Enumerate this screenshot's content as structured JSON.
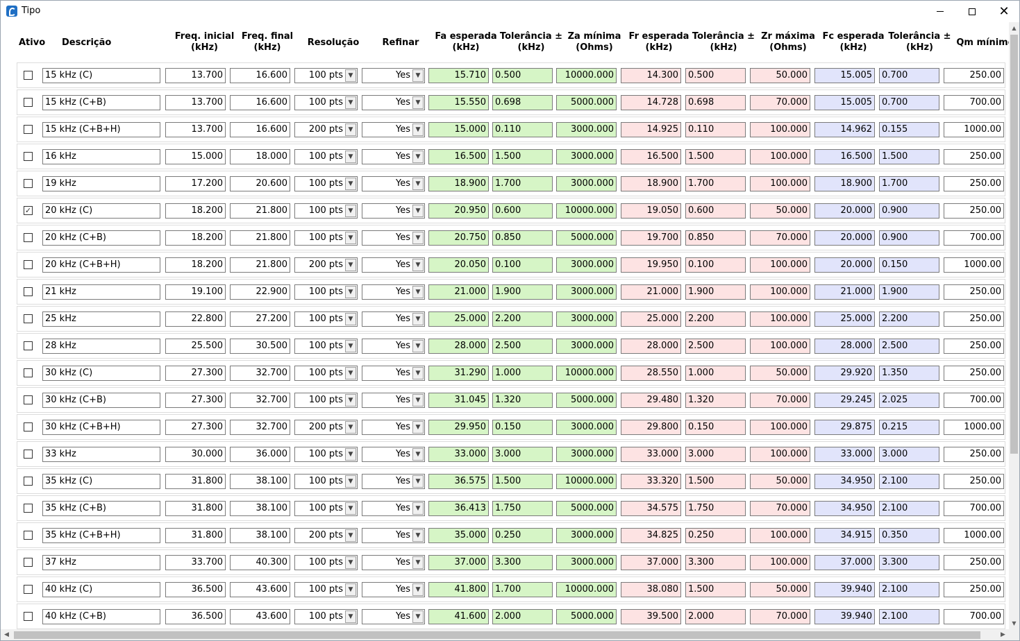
{
  "window": {
    "title": "Tipo"
  },
  "columns": [
    {
      "key": "ativo",
      "line1": "Ativo",
      "line2": ""
    },
    {
      "key": "descricao",
      "line1": "Descrição",
      "line2": ""
    },
    {
      "key": "freq_inicial",
      "line1": "Freq. inicial",
      "line2": "(kHz)"
    },
    {
      "key": "freq_final",
      "line1": "Freq. final",
      "line2": "(kHz)"
    },
    {
      "key": "resolucao",
      "line1": "Resolução",
      "line2": ""
    },
    {
      "key": "refinar",
      "line1": "Refinar",
      "line2": ""
    },
    {
      "key": "fa_esperada",
      "line1": "Fa esperada",
      "line2": "(kHz)"
    },
    {
      "key": "fa_tol",
      "line1": "Tolerância ±",
      "line2": "(kHz)"
    },
    {
      "key": "za_minima",
      "line1": "Za mínima",
      "line2": "(Ohms)"
    },
    {
      "key": "fr_esperada",
      "line1": "Fr esperada",
      "line2": "(kHz)"
    },
    {
      "key": "fr_tol",
      "line1": "Tolerância ±",
      "line2": "(kHz)"
    },
    {
      "key": "zr_maxima",
      "line1": "Zr máxima",
      "line2": "(Ohms)"
    },
    {
      "key": "fc_esperada",
      "line1": "Fc esperada",
      "line2": "(kHz)"
    },
    {
      "key": "fc_tol",
      "line1": "Tolerância ±",
      "line2": "(kHz)"
    },
    {
      "key": "qm_minimo",
      "line1": "Qm mínimo",
      "line2": ""
    }
  ],
  "colors": {
    "green": "#d6f5c6",
    "pink": "#fde3e3",
    "blue": "#e1e4fb"
  },
  "rows": [
    {
      "ativo": false,
      "descricao": "15 kHz (C)",
      "freq_inicial": "13.700",
      "freq_final": "16.600",
      "resolucao": "100 pts",
      "refinar": "Yes",
      "fa_esperada": "15.710",
      "fa_tol": "0.500",
      "za_minima": "10000.000",
      "fr_esperada": "14.300",
      "fr_tol": "0.500",
      "zr_maxima": "50.000",
      "fc_esperada": "15.005",
      "fc_tol": "0.700",
      "qm_minimo": "250.00"
    },
    {
      "ativo": false,
      "descricao": "15 kHz (C+B)",
      "freq_inicial": "13.700",
      "freq_final": "16.600",
      "resolucao": "100 pts",
      "refinar": "Yes",
      "fa_esperada": "15.550",
      "fa_tol": "0.698",
      "za_minima": "5000.000",
      "fr_esperada": "14.728",
      "fr_tol": "0.698",
      "zr_maxima": "70.000",
      "fc_esperada": "15.005",
      "fc_tol": "0.700",
      "qm_minimo": "700.00"
    },
    {
      "ativo": false,
      "descricao": "15 kHz (C+B+H)",
      "freq_inicial": "13.700",
      "freq_final": "16.600",
      "resolucao": "200 pts",
      "refinar": "Yes",
      "fa_esperada": "15.000",
      "fa_tol": "0.110",
      "za_minima": "3000.000",
      "fr_esperada": "14.925",
      "fr_tol": "0.110",
      "zr_maxima": "100.000",
      "fc_esperada": "14.962",
      "fc_tol": "0.155",
      "qm_minimo": "1000.00"
    },
    {
      "ativo": false,
      "descricao": "16 kHz",
      "freq_inicial": "15.000",
      "freq_final": "18.000",
      "resolucao": "100 pts",
      "refinar": "Yes",
      "fa_esperada": "16.500",
      "fa_tol": "1.500",
      "za_minima": "3000.000",
      "fr_esperada": "16.500",
      "fr_tol": "1.500",
      "zr_maxima": "100.000",
      "fc_esperada": "16.500",
      "fc_tol": "1.500",
      "qm_minimo": "250.00"
    },
    {
      "ativo": false,
      "descricao": "19 kHz",
      "freq_inicial": "17.200",
      "freq_final": "20.600",
      "resolucao": "100 pts",
      "refinar": "Yes",
      "fa_esperada": "18.900",
      "fa_tol": "1.700",
      "za_minima": "3000.000",
      "fr_esperada": "18.900",
      "fr_tol": "1.700",
      "zr_maxima": "100.000",
      "fc_esperada": "18.900",
      "fc_tol": "1.700",
      "qm_minimo": "250.00"
    },
    {
      "ativo": true,
      "descricao": "20 kHz (C)",
      "freq_inicial": "18.200",
      "freq_final": "21.800",
      "resolucao": "100 pts",
      "refinar": "Yes",
      "fa_esperada": "20.950",
      "fa_tol": "0.600",
      "za_minima": "10000.000",
      "fr_esperada": "19.050",
      "fr_tol": "0.600",
      "zr_maxima": "50.000",
      "fc_esperada": "20.000",
      "fc_tol": "0.900",
      "qm_minimo": "250.00"
    },
    {
      "ativo": false,
      "descricao": "20 kHz (C+B)",
      "freq_inicial": "18.200",
      "freq_final": "21.800",
      "resolucao": "100 pts",
      "refinar": "Yes",
      "fa_esperada": "20.750",
      "fa_tol": "0.850",
      "za_minima": "5000.000",
      "fr_esperada": "19.700",
      "fr_tol": "0.850",
      "zr_maxima": "70.000",
      "fc_esperada": "20.000",
      "fc_tol": "0.900",
      "qm_minimo": "700.00"
    },
    {
      "ativo": false,
      "descricao": "20 kHz (C+B+H)",
      "freq_inicial": "18.200",
      "freq_final": "21.800",
      "resolucao": "200 pts",
      "refinar": "Yes",
      "fa_esperada": "20.050",
      "fa_tol": "0.100",
      "za_minima": "3000.000",
      "fr_esperada": "19.950",
      "fr_tol": "0.100",
      "zr_maxima": "100.000",
      "fc_esperada": "20.000",
      "fc_tol": "0.150",
      "qm_minimo": "1000.00"
    },
    {
      "ativo": false,
      "descricao": "21 kHz",
      "freq_inicial": "19.100",
      "freq_final": "22.900",
      "resolucao": "100 pts",
      "refinar": "Yes",
      "fa_esperada": "21.000",
      "fa_tol": "1.900",
      "za_minima": "3000.000",
      "fr_esperada": "21.000",
      "fr_tol": "1.900",
      "zr_maxima": "100.000",
      "fc_esperada": "21.000",
      "fc_tol": "1.900",
      "qm_minimo": "250.00"
    },
    {
      "ativo": false,
      "descricao": "25 kHz",
      "freq_inicial": "22.800",
      "freq_final": "27.200",
      "resolucao": "100 pts",
      "refinar": "Yes",
      "fa_esperada": "25.000",
      "fa_tol": "2.200",
      "za_minima": "3000.000",
      "fr_esperada": "25.000",
      "fr_tol": "2.200",
      "zr_maxima": "100.000",
      "fc_esperada": "25.000",
      "fc_tol": "2.200",
      "qm_minimo": "250.00"
    },
    {
      "ativo": false,
      "descricao": "28 kHz",
      "freq_inicial": "25.500",
      "freq_final": "30.500",
      "resolucao": "100 pts",
      "refinar": "Yes",
      "fa_esperada": "28.000",
      "fa_tol": "2.500",
      "za_minima": "3000.000",
      "fr_esperada": "28.000",
      "fr_tol": "2.500",
      "zr_maxima": "100.000",
      "fc_esperada": "28.000",
      "fc_tol": "2.500",
      "qm_minimo": "250.00"
    },
    {
      "ativo": false,
      "descricao": "30 kHz (C)",
      "freq_inicial": "27.300",
      "freq_final": "32.700",
      "resolucao": "100 pts",
      "refinar": "Yes",
      "fa_esperada": "31.290",
      "fa_tol": "1.000",
      "za_minima": "10000.000",
      "fr_esperada": "28.550",
      "fr_tol": "1.000",
      "zr_maxima": "50.000",
      "fc_esperada": "29.920",
      "fc_tol": "1.350",
      "qm_minimo": "250.00"
    },
    {
      "ativo": false,
      "descricao": "30 kHz (C+B)",
      "freq_inicial": "27.300",
      "freq_final": "32.700",
      "resolucao": "100 pts",
      "refinar": "Yes",
      "fa_esperada": "31.045",
      "fa_tol": "1.320",
      "za_minima": "5000.000",
      "fr_esperada": "29.480",
      "fr_tol": "1.320",
      "zr_maxima": "70.000",
      "fc_esperada": "29.245",
      "fc_tol": "2.025",
      "qm_minimo": "700.00"
    },
    {
      "ativo": false,
      "descricao": "30 kHz (C+B+H)",
      "freq_inicial": "27.300",
      "freq_final": "32.700",
      "resolucao": "200 pts",
      "refinar": "Yes",
      "fa_esperada": "29.950",
      "fa_tol": "0.150",
      "za_minima": "3000.000",
      "fr_esperada": "29.800",
      "fr_tol": "0.150",
      "zr_maxima": "100.000",
      "fc_esperada": "29.875",
      "fc_tol": "0.215",
      "qm_minimo": "1000.00"
    },
    {
      "ativo": false,
      "descricao": "33 kHz",
      "freq_inicial": "30.000",
      "freq_final": "36.000",
      "resolucao": "100 pts",
      "refinar": "Yes",
      "fa_esperada": "33.000",
      "fa_tol": "3.000",
      "za_minima": "3000.000",
      "fr_esperada": "33.000",
      "fr_tol": "3.000",
      "zr_maxima": "100.000",
      "fc_esperada": "33.000",
      "fc_tol": "3.000",
      "qm_minimo": "250.00"
    },
    {
      "ativo": false,
      "descricao": "35 kHz (C)",
      "freq_inicial": "31.800",
      "freq_final": "38.100",
      "resolucao": "100 pts",
      "refinar": "Yes",
      "fa_esperada": "36.575",
      "fa_tol": "1.500",
      "za_minima": "10000.000",
      "fr_esperada": "33.320",
      "fr_tol": "1.500",
      "zr_maxima": "50.000",
      "fc_esperada": "34.950",
      "fc_tol": "2.100",
      "qm_minimo": "250.00"
    },
    {
      "ativo": false,
      "descricao": "35 kHz (C+B)",
      "freq_inicial": "31.800",
      "freq_final": "38.100",
      "resolucao": "100 pts",
      "refinar": "Yes",
      "fa_esperada": "36.413",
      "fa_tol": "1.750",
      "za_minima": "5000.000",
      "fr_esperada": "34.575",
      "fr_tol": "1.750",
      "zr_maxima": "70.000",
      "fc_esperada": "34.950",
      "fc_tol": "2.100",
      "qm_minimo": "700.00"
    },
    {
      "ativo": false,
      "descricao": "35 kHz (C+B+H)",
      "freq_inicial": "31.800",
      "freq_final": "38.100",
      "resolucao": "200 pts",
      "refinar": "Yes",
      "fa_esperada": "35.000",
      "fa_tol": "0.250",
      "za_minima": "3000.000",
      "fr_esperada": "34.825",
      "fr_tol": "0.250",
      "zr_maxima": "100.000",
      "fc_esperada": "34.915",
      "fc_tol": "0.350",
      "qm_minimo": "1000.00"
    },
    {
      "ativo": false,
      "descricao": "37 kHz",
      "freq_inicial": "33.700",
      "freq_final": "40.300",
      "resolucao": "100 pts",
      "refinar": "Yes",
      "fa_esperada": "37.000",
      "fa_tol": "3.300",
      "za_minima": "3000.000",
      "fr_esperada": "37.000",
      "fr_tol": "3.300",
      "zr_maxima": "100.000",
      "fc_esperada": "37.000",
      "fc_tol": "3.300",
      "qm_minimo": "250.00"
    },
    {
      "ativo": false,
      "descricao": "40 kHz (C)",
      "freq_inicial": "36.500",
      "freq_final": "43.600",
      "resolucao": "100 pts",
      "refinar": "Yes",
      "fa_esperada": "41.800",
      "fa_tol": "1.700",
      "za_minima": "10000.000",
      "fr_esperada": "38.080",
      "fr_tol": "1.500",
      "zr_maxima": "50.000",
      "fc_esperada": "39.940",
      "fc_tol": "2.100",
      "qm_minimo": "250.00"
    },
    {
      "ativo": false,
      "descricao": "40 kHz (C+B)",
      "freq_inicial": "36.500",
      "freq_final": "43.600",
      "resolucao": "100 pts",
      "refinar": "Yes",
      "fa_esperada": "41.600",
      "fa_tol": "2.000",
      "za_minima": "5000.000",
      "fr_esperada": "39.500",
      "fr_tol": "2.000",
      "zr_maxima": "70.000",
      "fc_esperada": "39.940",
      "fc_tol": "2.100",
      "qm_minimo": "700.00"
    }
  ]
}
